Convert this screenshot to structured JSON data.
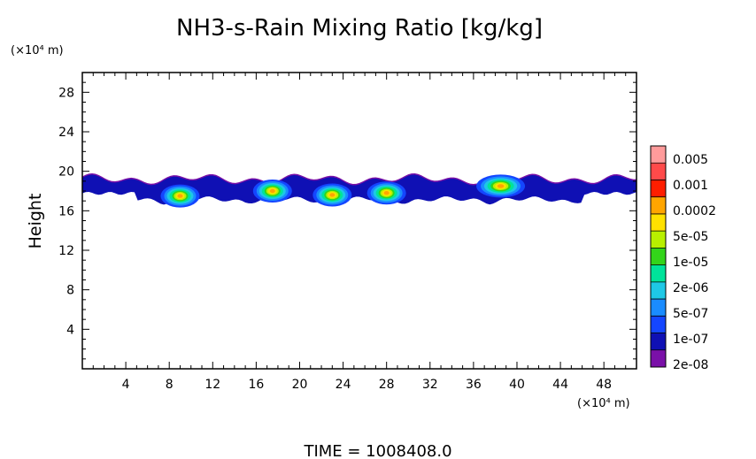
{
  "chart_data": {
    "type": "heatmap",
    "title": "NH3-s-Rain Mixing Ratio [kg/kg]",
    "xlabel": "",
    "ylabel": "Height",
    "x_unit": "(×10⁴ m)",
    "y_unit": "(×10⁴ m)",
    "xlim": [
      0,
      51
    ],
    "ylim": [
      0,
      30
    ],
    "x_ticks": [
      "4",
      "8",
      "12",
      "16",
      "20",
      "24",
      "28",
      "32",
      "36",
      "40",
      "44",
      "48"
    ],
    "y_ticks": [
      "4",
      "8",
      "12",
      "16",
      "20",
      "24",
      "28"
    ],
    "colorbar": {
      "labels": [
        "0.005",
        "0.001",
        "0.0002",
        "5e-05",
        "1e-05",
        "2e-06",
        "5e-07",
        "1e-07",
        "2e-08"
      ],
      "colors": [
        "#ff9b9b",
        "#ff4a4a",
        "#ff1e00",
        "#ffa500",
        "#ffe100",
        "#b8f000",
        "#33d41a",
        "#00e39a",
        "#1ec8e6",
        "#1a8cff",
        "#1446ff",
        "#0f10b4",
        "#7a10a8"
      ]
    },
    "layer": {
      "base_height": 16.6,
      "top_height": 19.6,
      "core_cells": [
        {
          "x": 9.0,
          "y": 17.5
        },
        {
          "x": 17.5,
          "y": 18.0
        },
        {
          "x": 23.0,
          "y": 17.6
        },
        {
          "x": 28.0,
          "y": 17.8
        },
        {
          "x": 38.5,
          "y": 18.5
        }
      ]
    },
    "footer": "TIME = 1008408.0"
  }
}
